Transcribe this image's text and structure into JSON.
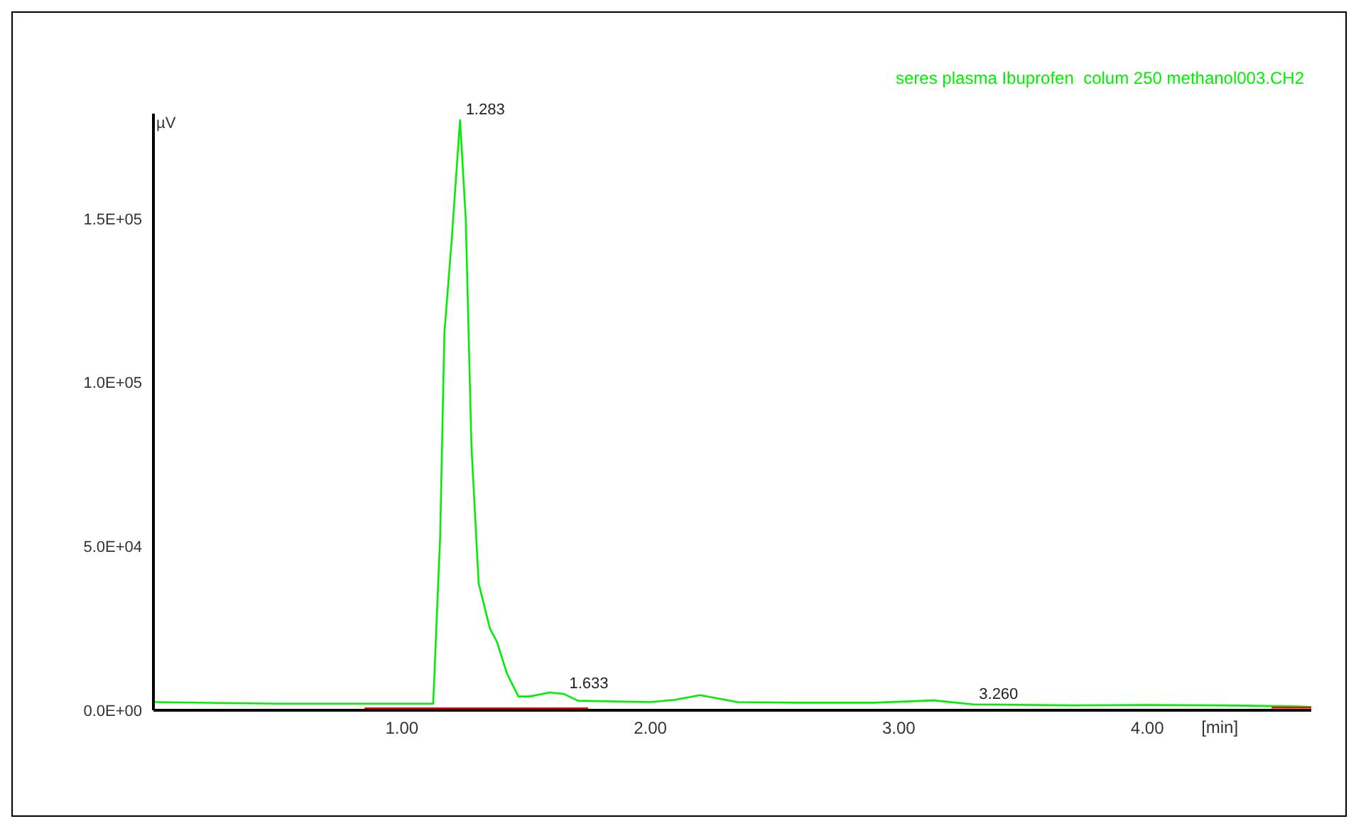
{
  "chart_data": {
    "type": "line",
    "xlabel": "[min]",
    "ylabel": "µV",
    "xlim": [
      0,
      4.66
    ],
    "ylim": [
      0,
      182000
    ],
    "xticks": [
      {
        "value": 1,
        "label": "1.00"
      },
      {
        "value": 2,
        "label": "2.00"
      },
      {
        "value": 3,
        "label": "3.00"
      },
      {
        "value": 4,
        "label": "4.00"
      }
    ],
    "yticks": [
      {
        "value": 0,
        "label": "0.0E+00"
      },
      {
        "value": 50000,
        "label": "5.0E+04"
      },
      {
        "value": 100000,
        "label": "1.0E+05"
      },
      {
        "value": 150000,
        "label": "1.5E+05"
      }
    ],
    "grid": false,
    "legend": "top right",
    "marker": "none",
    "line_style": "solid",
    "series": [
      {
        "name": "seres plasma Ibuprofen  colum 250 methanol003.CH2",
        "color": "#00ee00",
        "x": [
          0,
          0.5,
          0.85,
          1.1,
          1.126,
          1.154,
          1.171,
          1.2,
          1.234,
          1.257,
          1.28,
          1.309,
          1.354,
          1.383,
          1.423,
          1.469,
          1.514,
          1.594,
          1.651,
          1.709,
          2.0,
          2.1,
          2.2,
          2.35,
          2.6,
          2.9,
          3.14,
          3.3,
          3.7,
          4.0,
          4.3,
          4.6,
          4.66
        ],
        "values": [
          2500,
          2000,
          2000,
          2000,
          2000,
          52900,
          115000,
          143000,
          180000,
          150000,
          80400,
          38700,
          25000,
          20800,
          11200,
          4200,
          4200,
          5400,
          5000,
          2900,
          2500,
          3200,
          4600,
          2500,
          2300,
          2300,
          3000,
          1800,
          1500,
          1600,
          1500,
          1200,
          1000
        ]
      },
      {
        "color": "#ff0000",
        "x": [
          0.85,
          1.75,
          1.76,
          4.5,
          4.66
        ],
        "values": [
          600,
          600,
          null,
          800,
          800
        ]
      }
    ],
    "annotations": [
      {
        "text": "1.283",
        "x": 1.234,
        "y": 180000
      },
      {
        "text": "1.633",
        "x": 1.651,
        "y": 5000
      },
      {
        "text": "3.260",
        "x": 3.3,
        "y": 1800
      }
    ]
  }
}
